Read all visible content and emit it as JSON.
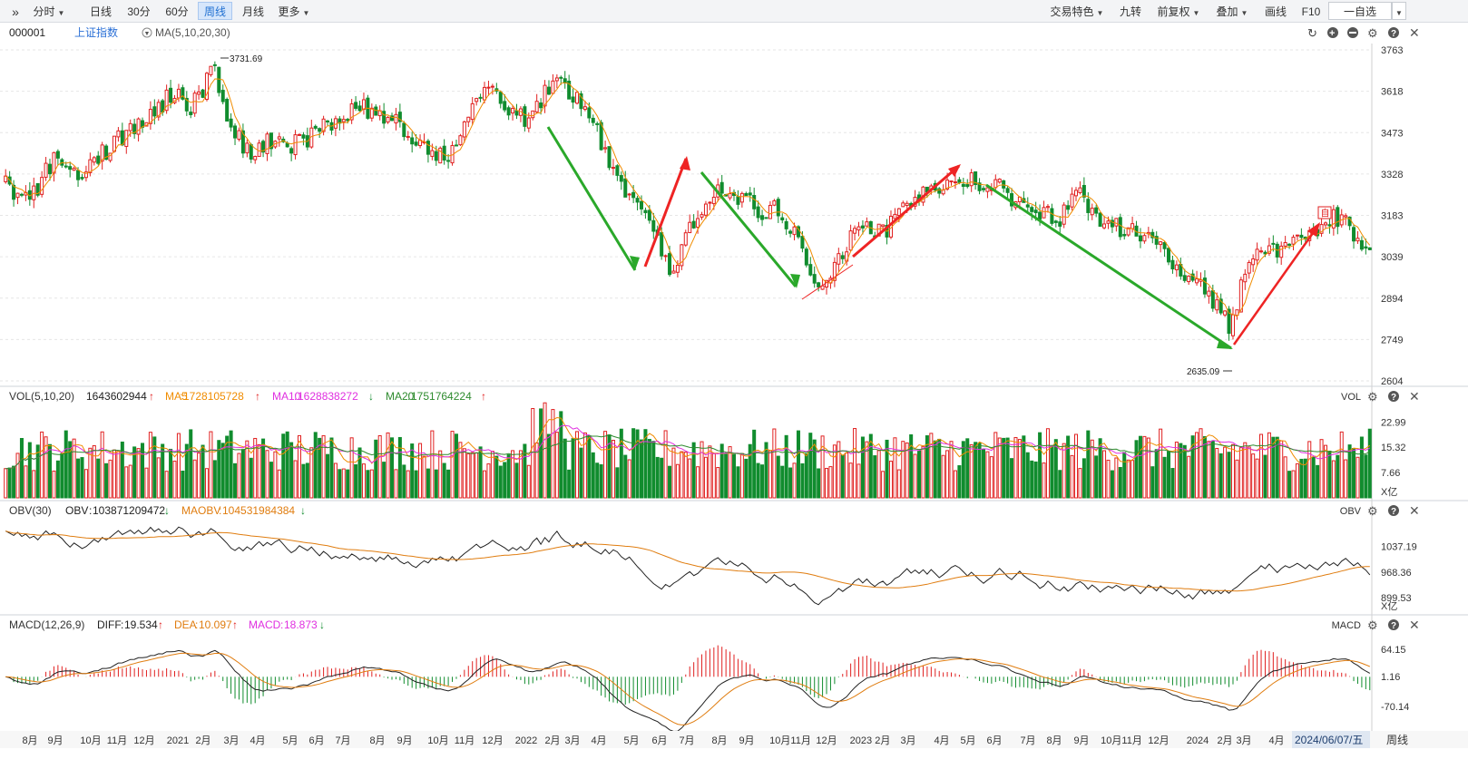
{
  "toolbar": {
    "expand_label": "»",
    "left_tabs": [
      "分时",
      "日线",
      "30分",
      "60分",
      "周线",
      "月线",
      "更多"
    ],
    "active_tab": "周线",
    "right_items": [
      "交易特色",
      "九转",
      "前复权",
      "叠加",
      "画线",
      "F10",
      "一自选"
    ]
  },
  "header": {
    "code": "000001",
    "name": "上证指数",
    "ma_label": "MA(5,10,20,30)"
  },
  "colors": {
    "up": "#e02020",
    "down": "#118c2e",
    "ma5": "#f08c00",
    "ma10": "#e030e0",
    "ma20": "#2e8b2e",
    "obv": "#222222",
    "maobv": "#e07d10",
    "diff": "#222222",
    "dea": "#e07d10",
    "arrow_up": "#ee2424",
    "arrow_down": "#2aa82a"
  },
  "chart_data": [
    {
      "type": "candlestick",
      "panel": "price",
      "ylim": [
        2604,
        3763
      ],
      "y_ticks": [
        "3763",
        "3618",
        "3473",
        "3328",
        "3183",
        "3039",
        "2894",
        "2749",
        "2604"
      ],
      "annotations": {
        "high": "3731.69",
        "low": "2635.09"
      },
      "x_ticks": [
        "8月",
        "9月",
        "10月",
        "11月",
        "12月",
        "2021",
        "2月",
        "3月",
        "4月",
        "5月",
        "6月",
        "7月",
        "8月",
        "9月",
        "10月",
        "11月",
        "12月",
        "2022",
        "2月",
        "3月",
        "4月",
        "5月",
        "6月",
        "7月",
        "8月",
        "9月",
        "10月11月",
        "12月",
        "2023 2月",
        "3月",
        "4月",
        "5月",
        "6月",
        "7月",
        "8月",
        "9月",
        "10月11月",
        "12月",
        "2024",
        "2月",
        "3月",
        "4月"
      ],
      "current_date": "2024/06/07/五",
      "period_label": "周线",
      "close_anchors": [
        [
          0,
          3290
        ],
        [
          6,
          3230
        ],
        [
          12,
          3390
        ],
        [
          18,
          3330
        ],
        [
          26,
          3420
        ],
        [
          30,
          3480
        ],
        [
          36,
          3540
        ],
        [
          42,
          3620
        ],
        [
          46,
          3560
        ],
        [
          52,
          3700
        ],
        [
          56,
          3480
        ],
        [
          62,
          3390
        ],
        [
          66,
          3450
        ],
        [
          70,
          3420
        ],
        [
          78,
          3480
        ],
        [
          86,
          3550
        ],
        [
          92,
          3560
        ],
        [
          98,
          3490
        ],
        [
          104,
          3430
        ],
        [
          110,
          3380
        ],
        [
          114,
          3520
        ],
        [
          120,
          3640
        ],
        [
          124,
          3580
        ],
        [
          130,
          3500
        ],
        [
          136,
          3660
        ],
        [
          140,
          3610
        ],
        [
          144,
          3560
        ],
        [
          150,
          3380
        ],
        [
          156,
          3230
        ],
        [
          162,
          3100
        ],
        [
          166,
          2980
        ],
        [
          170,
          3140
        ],
        [
          176,
          3280
        ],
        [
          182,
          3240
        ],
        [
          188,
          3200
        ],
        [
          192,
          3210
        ],
        [
          198,
          3060
        ],
        [
          202,
          2920
        ],
        [
          206,
          3010
        ],
        [
          210,
          3110
        ],
        [
          214,
          3150
        ],
        [
          218,
          3120
        ],
        [
          224,
          3230
        ],
        [
          230,
          3260
        ],
        [
          236,
          3300
        ],
        [
          240,
          3300
        ],
        [
          246,
          3290
        ],
        [
          250,
          3240
        ],
        [
          256,
          3190
        ],
        [
          262,
          3170
        ],
        [
          266,
          3270
        ],
        [
          270,
          3200
        ],
        [
          274,
          3150
        ],
        [
          280,
          3130
        ],
        [
          286,
          3080
        ],
        [
          292,
          2980
        ],
        [
          296,
          2960
        ],
        [
          300,
          2880
        ],
        [
          304,
          2800
        ],
        [
          308,
          2970
        ],
        [
          312,
          3060
        ],
        [
          316,
          3070
        ],
        [
          320,
          3090
        ],
        [
          324,
          3130
        ],
        [
          328,
          3160
        ],
        [
          332,
          3180
        ],
        [
          336,
          3070
        ],
        [
          338,
          3040
        ]
      ]
    },
    {
      "type": "bar",
      "panel": "volume",
      "title": "VOL(5,10,20)",
      "unit": "X亿",
      "legend": [
        {
          "name": "VOL",
          "value": "1643602944",
          "dir": "↑"
        },
        {
          "name": "MA5",
          "value": "1728105728",
          "dir": "↑"
        },
        {
          "name": "MA10",
          "value": "1628838272",
          "dir": "↓"
        },
        {
          "name": "MA20",
          "value": "1751764224",
          "dir": "↑"
        }
      ],
      "ylim": [
        0,
        28
      ],
      "y_ticks": [
        "22.99",
        "15.32",
        "7.66"
      ],
      "panel_label": "VOL"
    },
    {
      "type": "line",
      "panel": "obv",
      "title": "OBV(30)",
      "unit": "X亿",
      "legend": [
        {
          "name": "OBV",
          "value": "103871209472",
          "dir": "↓"
        },
        {
          "name": "MAOBV",
          "value": "104531984384",
          "dir": "↓"
        }
      ],
      "ylim": [
        860,
        1110
      ],
      "y_ticks": [
        "1037.19",
        "968.36",
        "899.53"
      ],
      "panel_label": "OBV"
    },
    {
      "type": "bar",
      "panel": "macd",
      "title": "MACD(12,26,9)",
      "legend": [
        {
          "name": "DIFF",
          "value": "19.534",
          "dir": "↑"
        },
        {
          "name": "DEA",
          "value": "10.097",
          "dir": "↑"
        },
        {
          "name": "MACD",
          "value": "18.873",
          "dir": "↓"
        }
      ],
      "ylim": [
        -125,
        105
      ],
      "y_ticks": [
        "64.15",
        "1.16",
        "-70.14"
      ],
      "panel_label": "MACD"
    }
  ]
}
